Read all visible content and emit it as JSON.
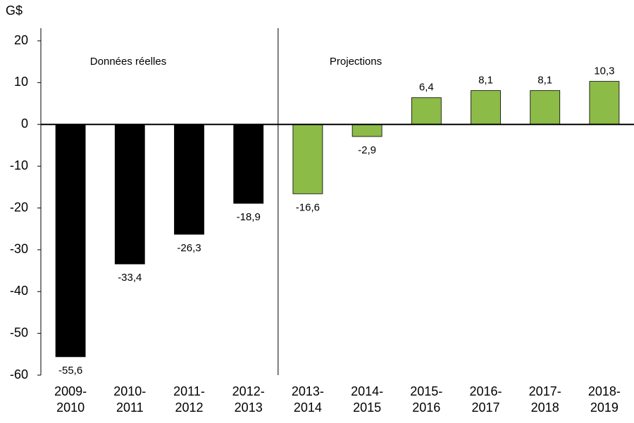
{
  "chart_data": {
    "type": "bar",
    "unit_label": "G$",
    "annotations": [
      "Données réelles",
      "Projections"
    ],
    "categories": [
      [
        "2009-",
        "2010"
      ],
      [
        "2010-",
        "2011"
      ],
      [
        "2011-",
        "2012"
      ],
      [
        "2012-",
        "2013"
      ],
      [
        "2013-",
        "2014"
      ],
      [
        "2014-",
        "2015"
      ],
      [
        "2015-",
        "2016"
      ],
      [
        "2016-",
        "2017"
      ],
      [
        "2017-",
        "2018"
      ],
      [
        "2018-",
        "2019"
      ]
    ],
    "values": [
      -55.6,
      -33.4,
      -26.3,
      -18.9,
      -16.6,
      -2.9,
      6.4,
      8.1,
      8.1,
      10.3
    ],
    "value_labels": [
      "-55,6",
      "-33,4",
      "-26,3",
      "-18,9",
      "-16,6",
      "-2,9",
      "6,4",
      "8,1",
      "8,1",
      "10,3"
    ],
    "colors": [
      "#000000",
      "#000000",
      "#000000",
      "#000000",
      "#8cbb47",
      "#8cbb47",
      "#8cbb47",
      "#8cbb47",
      "#8cbb47",
      "#8cbb47"
    ],
    "ylim": [
      -60,
      20
    ],
    "yticks": [
      -60,
      -50,
      -40,
      -30,
      -20,
      -10,
      0,
      10,
      20
    ],
    "grid": false
  }
}
